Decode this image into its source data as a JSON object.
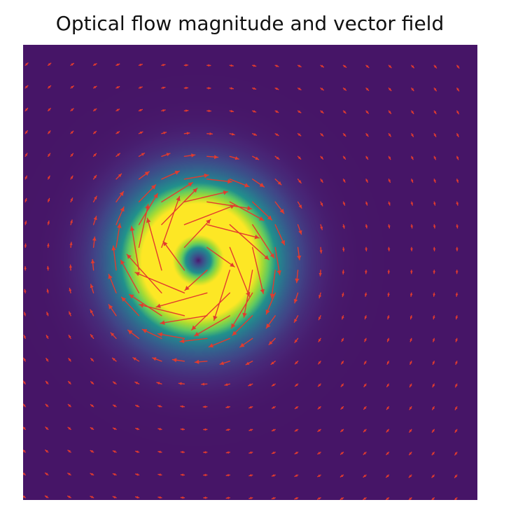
{
  "title": "Optical flow magnitude and vector field",
  "chart_data": {
    "type": "heatmap",
    "title": "Optical flow magnitude and vector field",
    "xlabel": "",
    "ylabel": "",
    "axes_visible": false,
    "grid": false,
    "colormap": "viridis",
    "overlay": "quiver",
    "vector_color": "#e23b2e",
    "background_color": "#ffffff",
    "vortex_center": [
      0.385,
      0.473
    ],
    "vortex_core_radius": 0.125,
    "grid_size": [
      20,
      20
    ],
    "rotation": "clockwise"
  }
}
